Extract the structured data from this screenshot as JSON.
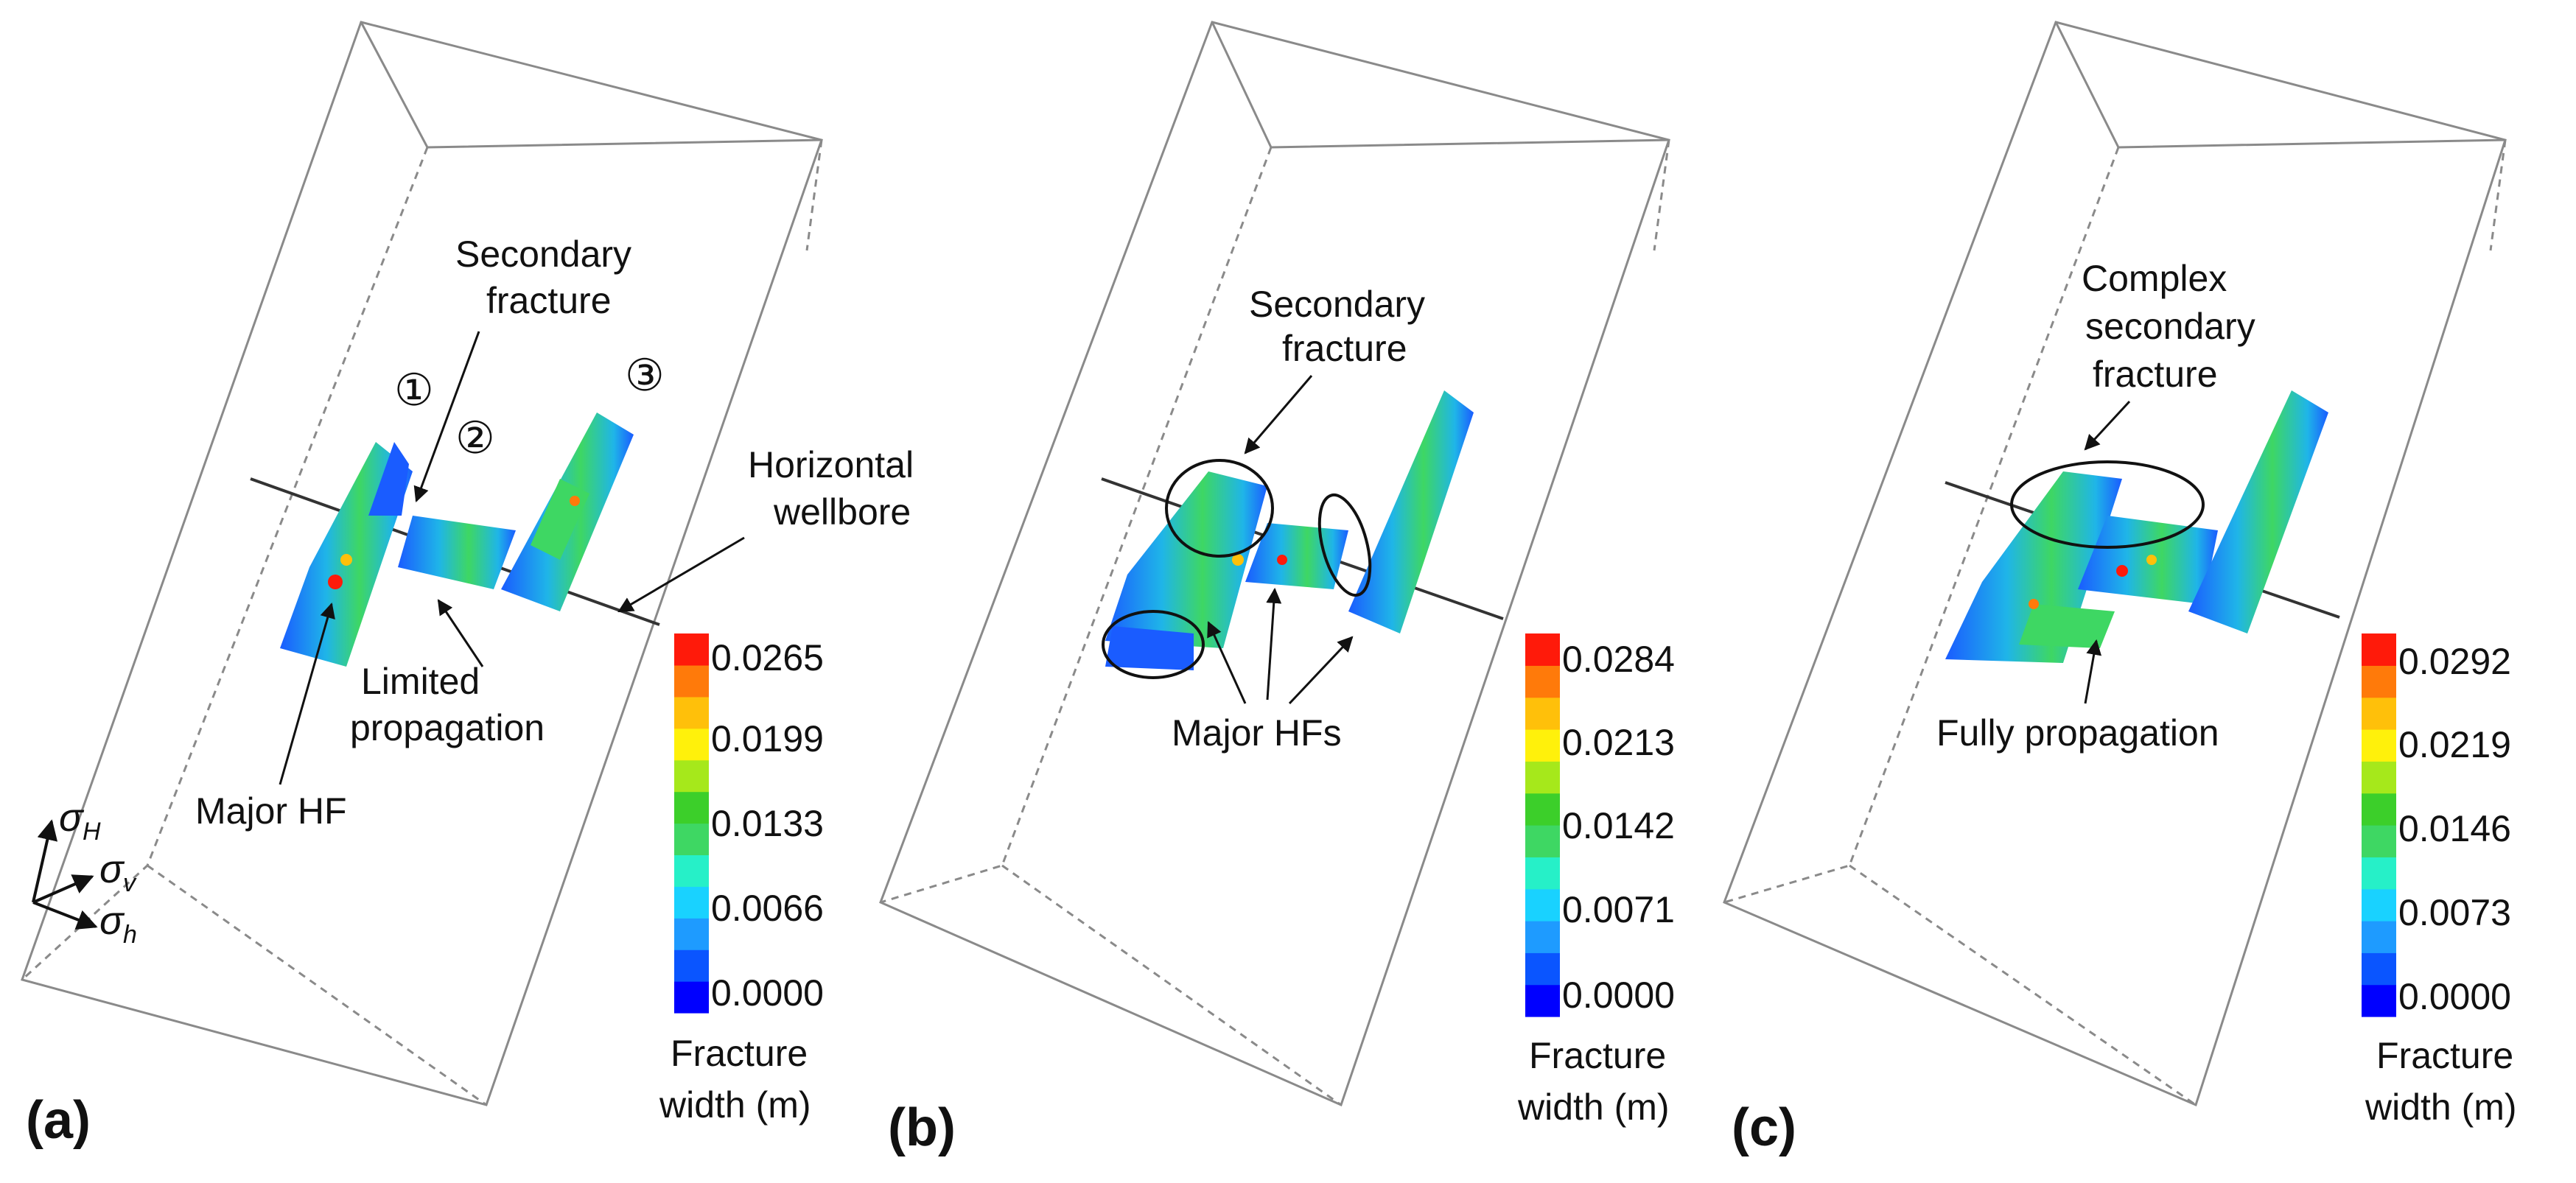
{
  "panels": [
    {
      "label": "(a)",
      "annotations": {
        "secondary": [
          "Secondary",
          "fracture"
        ],
        "wellbore": [
          "Horizontal",
          "wellbore"
        ],
        "limited": [
          "Limited",
          "propagation"
        ],
        "major": [
          "Major HF"
        ],
        "numbers": [
          "①",
          "②",
          "③"
        ]
      },
      "axes": {
        "sigma": "σ",
        "H": "H",
        "v": "v",
        "h": "h"
      },
      "colorbar": {
        "ticks": [
          "0.0265",
          "0.0199",
          "0.0133",
          "0.0066",
          "0.0000"
        ],
        "title": [
          "Fracture",
          "width (m)"
        ]
      }
    },
    {
      "label": "(b)",
      "annotations": {
        "secondary": [
          "Secondary",
          "fracture"
        ],
        "major": [
          "Major HFs"
        ]
      },
      "colorbar": {
        "ticks": [
          "0.0284",
          "0.0213",
          "0.0142",
          "0.0071",
          "0.0000"
        ],
        "title": [
          "Fracture",
          "width (m)"
        ]
      }
    },
    {
      "label": "(c)",
      "annotations": {
        "secondary": [
          "Complex",
          "secondary",
          "fracture"
        ],
        "fully": [
          "Fully propagation"
        ]
      },
      "colorbar": {
        "ticks": [
          "0.0292",
          "0.0219",
          "0.0146",
          "0.0073",
          "0.0000"
        ],
        "title": [
          "Fracture",
          "width (m)"
        ]
      }
    }
  ],
  "colors": {
    "colorbar_stops": [
      "#0000ff",
      "#0a55ff",
      "#1e9bff",
      "#19d2ff",
      "#26f0c8",
      "#3ed763",
      "#3ccf2a",
      "#a6e81b",
      "#fff10b",
      "#ffc00a",
      "#ff7a0a",
      "#ff1a0a"
    ],
    "box_line": "#8a8a8a",
    "wellbore": "#333333"
  }
}
